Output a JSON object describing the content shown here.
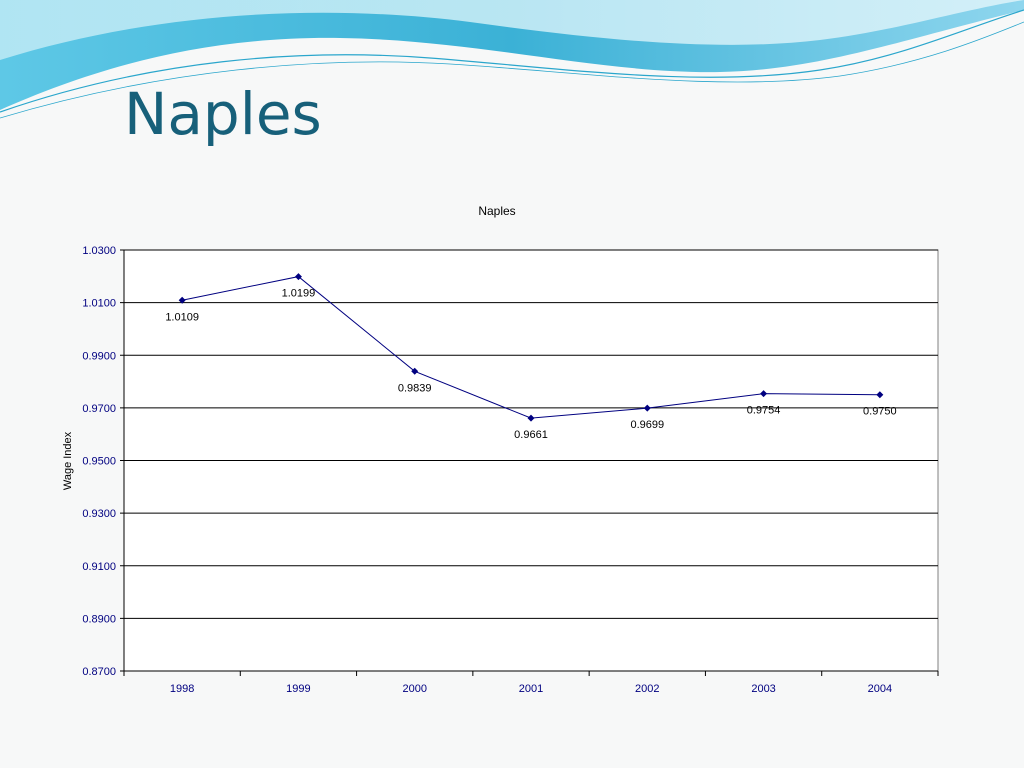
{
  "slide": {
    "title": "Naples",
    "colors": {
      "title": "#17607a",
      "wave_dark": "#3bb1d6",
      "wave_light": "#a8dff0",
      "background": "#f7f8f8"
    }
  },
  "chart_data": {
    "type": "line",
    "title": "Naples",
    "xlabel": "",
    "ylabel": "Wage Index",
    "categories": [
      "1998",
      "1999",
      "2000",
      "2001",
      "2002",
      "2003",
      "2004"
    ],
    "series": [
      {
        "values": [
          1.0109,
          1.0199,
          0.9839,
          0.9661,
          0.9699,
          0.9754,
          0.975
        ],
        "labels": [
          "1.0109",
          "1.0199",
          "0.9839",
          "0.9661",
          "0.9699",
          "0.9754",
          "0.9750"
        ],
        "color": "#000080"
      }
    ],
    "ylim": [
      0.87,
      1.03
    ],
    "yticks": [
      0.87,
      0.89,
      0.91,
      0.93,
      0.95,
      0.97,
      0.99,
      1.01,
      1.03
    ],
    "ytick_labels": [
      "0.8700",
      "0.8900",
      "0.9100",
      "0.9300",
      "0.9500",
      "0.9700",
      "0.9900",
      "1.0100",
      "1.0300"
    ],
    "grid": "horizontal",
    "legend": "none"
  }
}
